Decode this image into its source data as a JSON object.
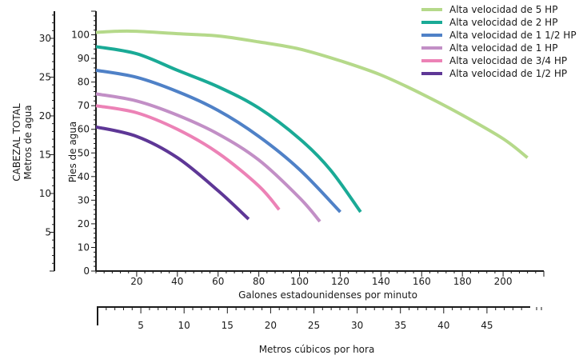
{
  "chart_data": {
    "type": "line",
    "x_axis": {
      "label": "Galones estadounidenses por minuto",
      "ticks": [
        20,
        40,
        60,
        80,
        100,
        120,
        140,
        160,
        180,
        200
      ],
      "range": [
        0,
        220
      ]
    },
    "x2_axis": {
      "label": "Metros cúbicos por hora",
      "ticks": [
        5,
        10,
        15,
        20,
        25,
        30,
        35,
        40,
        45
      ],
      "range": [
        0,
        50
      ]
    },
    "y_axis": {
      "label": "Pies de agua",
      "ticks": [
        0,
        10,
        20,
        30,
        40,
        50,
        60,
        70,
        80,
        90,
        100
      ],
      "range": [
        0,
        110
      ]
    },
    "y2_axis": {
      "title": "CABEZAL TOTAL",
      "label": "Metros de agua",
      "ticks": [
        5,
        10,
        15,
        20,
        25,
        30
      ],
      "range": [
        0,
        33.5
      ]
    },
    "series": [
      {
        "name": "Alta velocidad de 5 HP",
        "color": "#b5d98a",
        "x": [
          0,
          10,
          20,
          40,
          60,
          80,
          100,
          120,
          140,
          160,
          180,
          200,
          212
        ],
        "y": [
          101,
          101.5,
          101.5,
          100.5,
          99.5,
          97,
          94,
          89,
          83,
          75,
          66,
          56,
          48
        ]
      },
      {
        "name": "Alta velocidad de 2 HP",
        "color": "#1aaa96",
        "x": [
          0,
          20,
          40,
          60,
          80,
          100,
          115,
          130
        ],
        "y": [
          95,
          92,
          85,
          78,
          69,
          56,
          43,
          25
        ]
      },
      {
        "name": "Alta velocidad de 1 1/2 HP",
        "color": "#4f81c7",
        "x": [
          0,
          20,
          40,
          60,
          80,
          100,
          120
        ],
        "y": [
          85,
          82,
          76,
          68,
          57,
          43,
          25
        ]
      },
      {
        "name": "Alta velocidad de 1 HP",
        "color": "#c28fc6",
        "x": [
          0,
          20,
          40,
          60,
          80,
          100,
          110
        ],
        "y": [
          75,
          72,
          66,
          58,
          47,
          31,
          21
        ]
      },
      {
        "name": "Alta velocidad de 3/4 HP",
        "color": "#ec82b6",
        "x": [
          0,
          20,
          40,
          60,
          80,
          90
        ],
        "y": [
          70,
          67,
          60,
          50,
          36,
          26
        ]
      },
      {
        "name": "Alta velocidad de 1/2 HP",
        "color": "#5e3796",
        "x": [
          0,
          20,
          40,
          60,
          75
        ],
        "y": [
          61,
          57,
          48,
          34,
          22
        ]
      }
    ]
  }
}
